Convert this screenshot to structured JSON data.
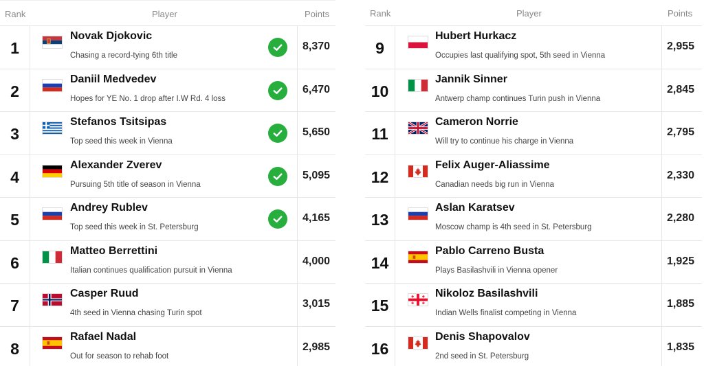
{
  "left": {
    "header": {
      "rank": "Rank",
      "player": "Player",
      "points": "Points"
    },
    "rows": [
      {
        "rank": "1",
        "flag": "serbia-flag",
        "name": "Novak Djokovic",
        "note": "Chasing a record-tying 6th title",
        "qualified": true,
        "points": "8,370"
      },
      {
        "rank": "2",
        "flag": "russia-flag",
        "name": "Daniil Medvedev",
        "note": "Hopes for YE No. 1 drop after I.W Rd. 4 loss",
        "qualified": true,
        "points": "6,470"
      },
      {
        "rank": "3",
        "flag": "greece-flag",
        "name": "Stefanos Tsitsipas",
        "note": "Top seed this week in Vienna",
        "qualified": true,
        "points": "5,650"
      },
      {
        "rank": "4",
        "flag": "germany-flag",
        "name": "Alexander Zverev",
        "note": "Pursuing 5th title of season in Vienna",
        "qualified": true,
        "points": "5,095"
      },
      {
        "rank": "5",
        "flag": "russia-flag",
        "name": "Andrey Rublev",
        "note": "Top seed this week in St. Petersburg",
        "qualified": true,
        "points": "4,165"
      },
      {
        "rank": "6",
        "flag": "italy-flag",
        "name": "Matteo Berrettini",
        "note": "Italian continues qualification pursuit in Vienna",
        "qualified": false,
        "points": "4,000"
      },
      {
        "rank": "7",
        "flag": "norway-flag",
        "name": "Casper Ruud",
        "note": "4th seed in Vienna chasing Turin spot",
        "qualified": false,
        "points": "3,015"
      },
      {
        "rank": "8",
        "flag": "spain-flag",
        "name": "Rafael Nadal",
        "note": "Out for season to rehab foot",
        "qualified": false,
        "points": "2,985"
      }
    ]
  },
  "right": {
    "header": {
      "rank": "Rank",
      "player": "Player",
      "points": "Points"
    },
    "rows": [
      {
        "rank": "9",
        "flag": "poland-flag",
        "name": "Hubert Hurkacz",
        "note": "Occupies last qualifying spot, 5th seed in Vienna",
        "points": "2,955"
      },
      {
        "rank": "10",
        "flag": "italy-flag",
        "name": "Jannik Sinner",
        "note": "Antwerp champ continues Turin push in Vienna",
        "points": "2,845"
      },
      {
        "rank": "11",
        "flag": "uk-flag",
        "name": "Cameron Norrie",
        "note": "Will try to continue his charge in Vienna",
        "points": "2,795"
      },
      {
        "rank": "12",
        "flag": "canada-flag",
        "name": "Felix Auger-Aliassime",
        "note": "Canadian needs big run in Vienna",
        "points": "2,330"
      },
      {
        "rank": "13",
        "flag": "russia-flag",
        "name": "Aslan Karatsev",
        "note": "Moscow champ is 4th seed in St. Petersburg",
        "points": "2,280"
      },
      {
        "rank": "14",
        "flag": "spain-flag",
        "name": "Pablo Carreno Busta",
        "note": "Plays Basilashvili in Vienna opener",
        "points": "1,925"
      },
      {
        "rank": "15",
        "flag": "georgia-flag",
        "name": "Nikoloz Basilashvili",
        "note": "Indian Wells finalist competing in Vienna",
        "points": "1,885"
      },
      {
        "rank": "16",
        "flag": "canada-flag",
        "name": "Denis Shapovalov",
        "note": "2nd seed in St. Petersburg",
        "points": "1,835"
      }
    ]
  },
  "colors": {
    "check": "#27ae3d",
    "divider": "#e6e6e6",
    "header_text": "#8a8a8a"
  }
}
